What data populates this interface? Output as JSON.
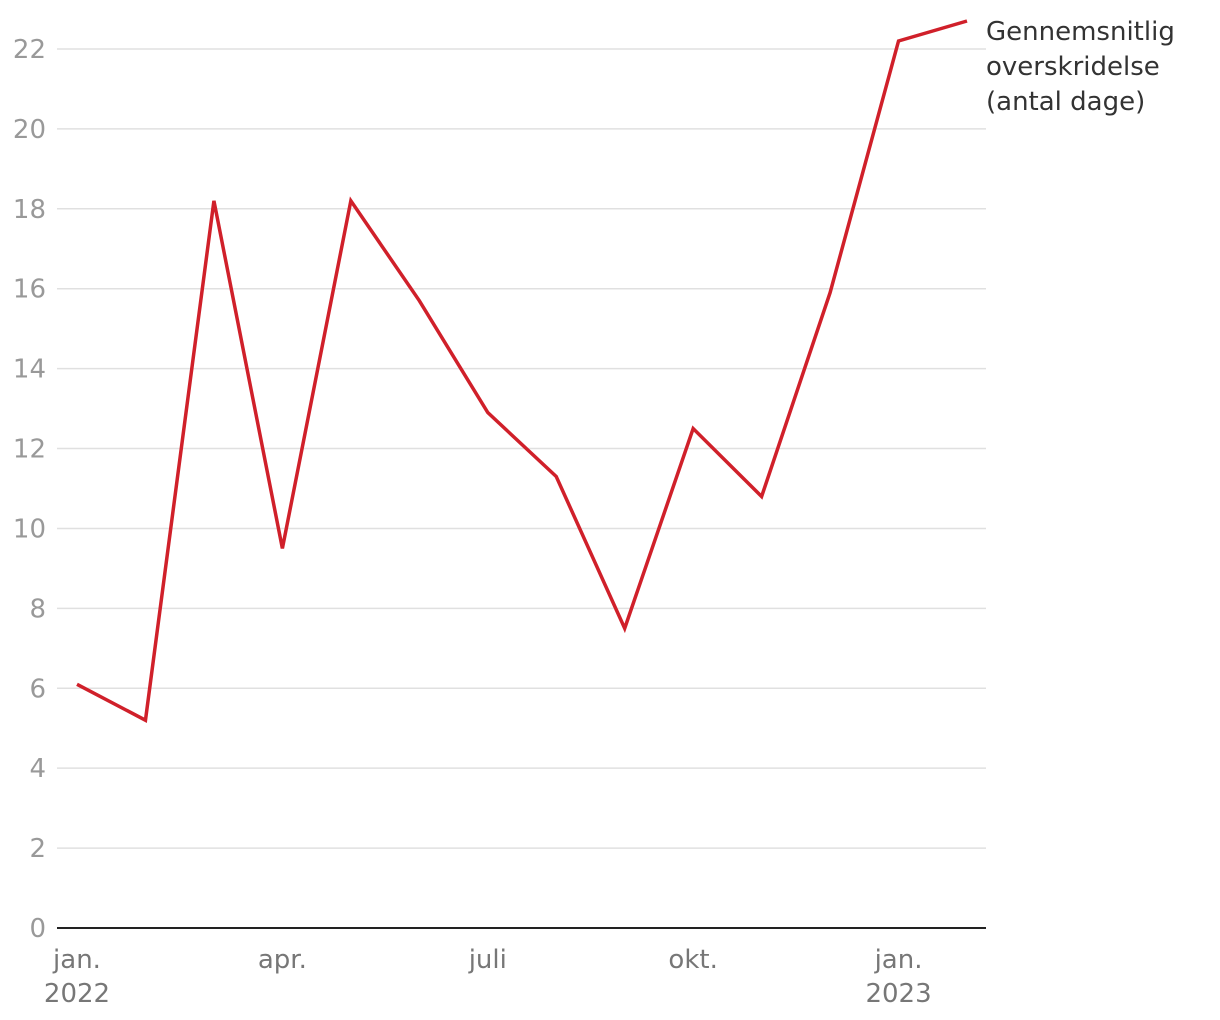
{
  "chart_data": {
    "type": "line",
    "categories": [
      "jan. 2022",
      null,
      null,
      "apr.",
      null,
      null,
      "juli",
      null,
      null,
      "okt.",
      null,
      null,
      "jan. 2023",
      null
    ],
    "series": [
      {
        "name": "Gennemsnitlig overskridelse (antal dage)",
        "color": "#d0202a",
        "values": [
          6.1,
          5.2,
          18.2,
          9.5,
          18.2,
          15.7,
          12.9,
          11.3,
          7.5,
          12.5,
          10.8,
          15.9,
          22.2,
          22.7
        ]
      }
    ],
    "ylim": [
      0,
      22.7
    ],
    "yticks": [
      0,
      2,
      4,
      6,
      8,
      10,
      12,
      14,
      16,
      18,
      20,
      22
    ],
    "grid": true
  }
}
